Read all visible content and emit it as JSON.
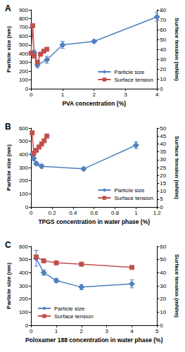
{
  "chart_data": [
    {
      "type": "line",
      "title": "A",
      "x_label": "PVA concentration (%)",
      "y_label": "Particle size (nm)",
      "y2_label": "Surface tension (mN/m)",
      "xlim": [
        0,
        4
      ],
      "xticks": [
        0,
        1,
        2,
        3,
        4
      ],
      "ylim": [
        0,
        900
      ],
      "yticks": [
        0,
        100,
        200,
        300,
        400,
        500,
        600,
        700,
        800,
        900
      ],
      "y2lim": [
        0,
        80
      ],
      "y2ticks": [
        0,
        10,
        20,
        30,
        40,
        50,
        60,
        70,
        80
      ],
      "grid": false,
      "legend": "lower right",
      "series": [
        {
          "name": "Particle size",
          "color": "#4f81bd",
          "marker": "diamond",
          "line_style": "solid",
          "x": [
            0.1,
            0.2,
            0.5,
            1,
            2,
            4
          ],
          "values": [
            410,
            270,
            330,
            500,
            540,
            820
          ],
          "errors": [
            30,
            30,
            40,
            40,
            15,
            50
          ]
        },
        {
          "name": "Surface tension",
          "color": "#c0504d",
          "marker": "square",
          "line_style": "solid",
          "axis": "y2",
          "x": [
            0,
            0.05,
            0.1,
            0.2,
            0.3,
            0.4,
            0.5
          ],
          "values": [
            36,
            64,
            33,
            27,
            35,
            38,
            40
          ]
        }
      ]
    },
    {
      "type": "line",
      "title": "B",
      "x_label": "TPGS concentration in water phase (%)",
      "y_label": "Particle size (nm)",
      "y2_label": "Surface tension (mN/m)",
      "xlim": [
        0,
        1.2
      ],
      "xticks": [
        0,
        0.2,
        0.4,
        0.6,
        0.8,
        1,
        1.2
      ],
      "ylim": [
        0,
        600
      ],
      "yticks": [
        0,
        100,
        200,
        300,
        400,
        500,
        600
      ],
      "y2lim": [
        0,
        50
      ],
      "y2ticks": [
        0,
        5,
        10,
        15,
        20,
        25,
        30,
        35,
        40,
        45,
        50
      ],
      "grid": false,
      "legend": "lower right",
      "series": [
        {
          "name": "Particle size",
          "color": "#4f81bd",
          "marker": "diamond",
          "line_style": "solid",
          "x": [
            0.01,
            0.025,
            0.05,
            0.1,
            0.5,
            1
          ],
          "values": [
            400,
            370,
            330,
            310,
            290,
            470
          ],
          "errors": [
            15,
            20,
            15,
            15,
            10,
            25
          ]
        },
        {
          "name": "Surface tension",
          "color": "#c0504d",
          "marker": "square",
          "line_style": "solid",
          "axis": "y2",
          "x": [
            0.01,
            0.025,
            0.05,
            0.075,
            0.1,
            0.125,
            0.15
          ],
          "values": [
            47,
            34,
            36,
            38,
            40,
            42,
            45
          ]
        }
      ]
    },
    {
      "type": "line",
      "title": "C",
      "x_label": "Poloxamer 188 concentration in water phase (%)",
      "y_label": "Particle size (nm)",
      "y2_label": "Surface tension (mN/m)",
      "xlim": [
        0,
        5
      ],
      "xticks": [
        0,
        1,
        2,
        3,
        4,
        5
      ],
      "ylim": [
        0,
        600
      ],
      "yticks": [
        0,
        100,
        200,
        300,
        400,
        500,
        600
      ],
      "y2lim": [
        0,
        60
      ],
      "y2ticks": [
        0,
        10,
        20,
        30,
        40,
        50,
        60
      ],
      "grid": false,
      "legend": "lower left",
      "series": [
        {
          "name": "Particle size",
          "color": "#4f81bd",
          "marker": "diamond",
          "line_style": "solid",
          "x": [
            0.2,
            0.5,
            1,
            2,
            4
          ],
          "values": [
            510,
            400,
            340,
            290,
            315
          ],
          "errors": [
            60,
            20,
            15,
            20,
            30
          ]
        },
        {
          "name": "Surface tension",
          "color": "#c0504d",
          "marker": "square",
          "line_style": "solid",
          "axis": "y2",
          "x": [
            0.2,
            0.5,
            1,
            2,
            4
          ],
          "values": [
            52,
            49,
            47.5,
            46.5,
            44
          ]
        }
      ]
    }
  ]
}
